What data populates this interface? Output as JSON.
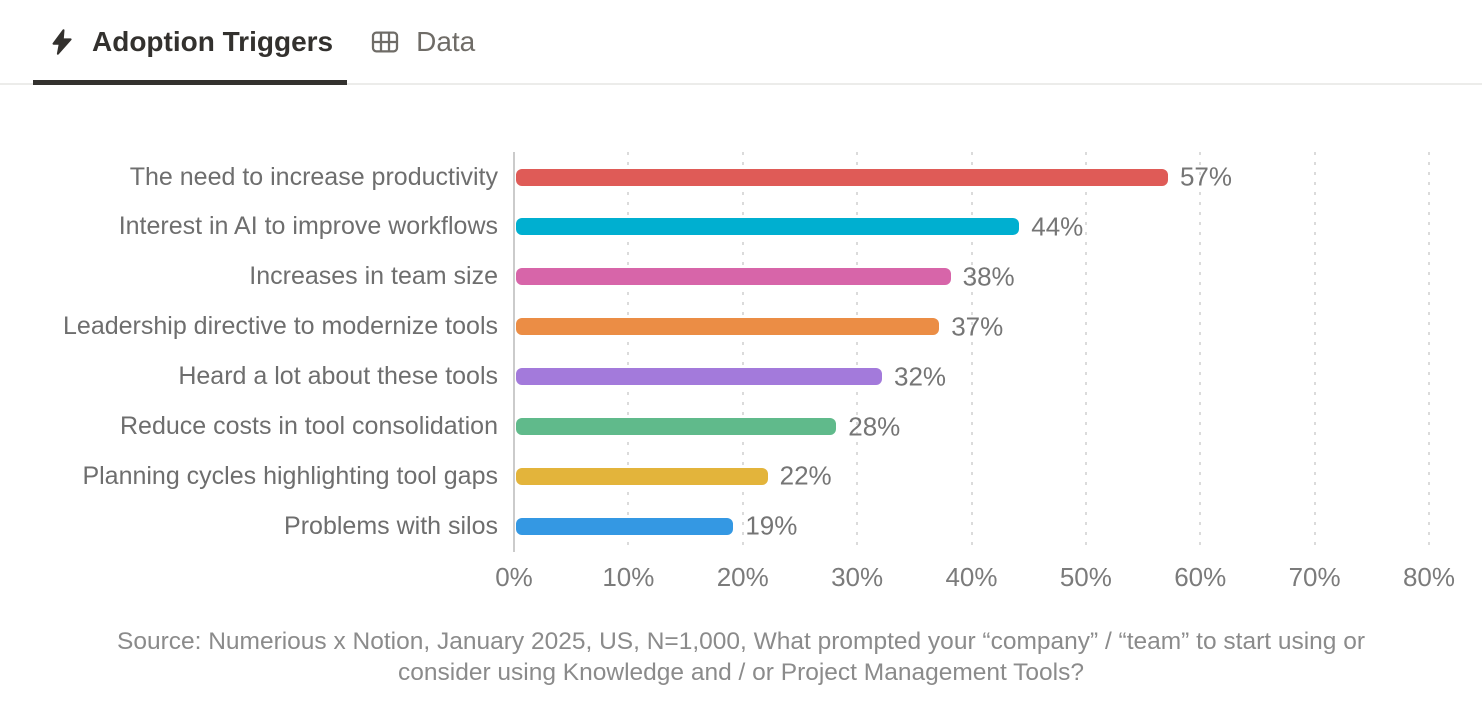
{
  "tabs": [
    {
      "label": "Adoption Triggers",
      "icon": "lightning-bolt-icon",
      "active": true
    },
    {
      "label": "Data",
      "icon": "table-icon",
      "active": false
    }
  ],
  "chart_data": {
    "type": "bar",
    "orientation": "horizontal",
    "title": "Adoption Triggers",
    "categories": [
      "The need to increase productivity",
      "Interest in AI to improve workflows",
      "Increases in team size",
      "Leadership directive to modernize tools",
      "Heard a lot about these tools",
      "Reduce costs in tool consolidation",
      "Planning cycles highlighting tool gaps",
      "Problems with silos"
    ],
    "values": [
      57,
      44,
      38,
      37,
      32,
      28,
      22,
      19
    ],
    "value_labels": [
      "57%",
      "44%",
      "38%",
      "37%",
      "32%",
      "28%",
      "22%",
      "19%"
    ],
    "bar_colors": [
      "#DF5B57",
      "#00AFD0",
      "#D765A9",
      "#EB8D45",
      "#A37ADB",
      "#60BA8B",
      "#E3B43B",
      "#3498E3"
    ],
    "xlabel": "",
    "ylabel": "",
    "xlim": [
      0,
      80
    ],
    "x_ticks": [
      "0%",
      "10%",
      "20%",
      "30%",
      "40%",
      "50%",
      "60%",
      "70%",
      "80%"
    ],
    "grid": "dotted-vertical",
    "legend": "none"
  },
  "source_note": "Source: Numerious x Notion, January 2025, US, N=1,000, What prompted your “company” / “team” to start using or consider using Knowledge and / or Project Management Tools?",
  "colors": {
    "active_tab_text": "#33312E",
    "inactive_tab_text": "#6F6C67",
    "category_label": "#6E6E6E",
    "value_label": "#757575",
    "tick_label": "#7B7B7B",
    "gridline": "#DBDBDB",
    "source_text": "#8B8B8B"
  }
}
